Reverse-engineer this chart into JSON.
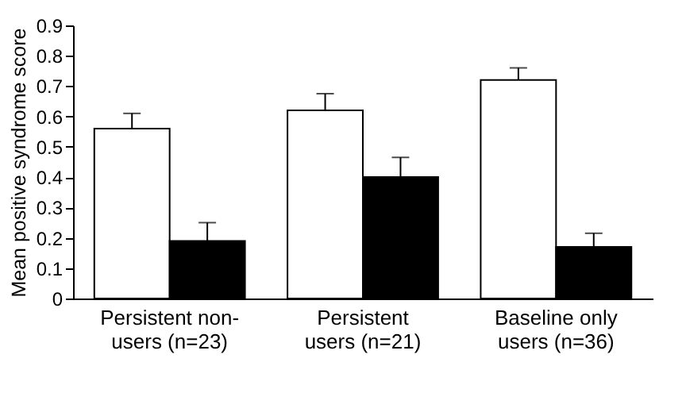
{
  "chart_data": {
    "type": "bar",
    "ylabel": "Mean positive syndrome score",
    "categories": [
      "Persistent non-users (n=23)",
      "Persistent users (n=21)",
      "Baseline only users (n=36)"
    ],
    "series": [
      {
        "color": "#ffffff",
        "values": [
          0.56,
          0.62,
          0.72
        ],
        "errors": [
          [
            0.56,
            0.61
          ],
          [
            0.62,
            0.675
          ],
          [
            0.72,
            0.76
          ]
        ]
      },
      {
        "color": "#000000",
        "values": [
          0.19,
          0.4,
          0.17
        ],
        "errors": [
          [
            0.19,
            0.25
          ],
          [
            0.4,
            0.465
          ],
          [
            0.17,
            0.215
          ]
        ]
      }
    ],
    "ylim": [
      0,
      0.9
    ],
    "yticks": [
      0,
      0.1,
      0.2,
      0.3,
      0.4,
      0.5,
      0.6,
      0.7,
      0.8,
      0.9
    ],
    "grid": false,
    "legend": false
  }
}
